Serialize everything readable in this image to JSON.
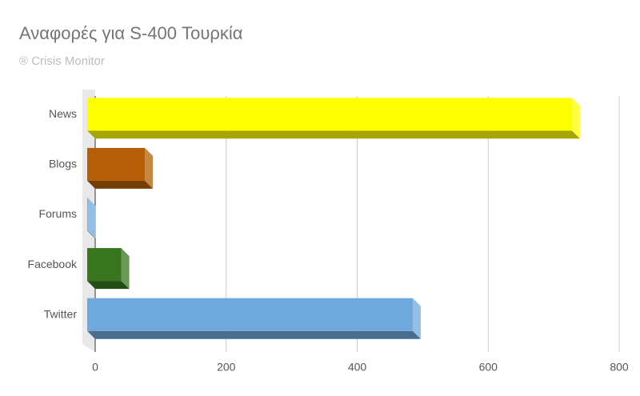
{
  "chart_data": {
    "type": "bar",
    "orientation": "horizontal",
    "title": "Αναφορές για S-400 Τουρκία",
    "subtitle": "® Crisis Monitor",
    "categories": [
      "News",
      "Blogs",
      "Forums",
      "Facebook",
      "Twitter"
    ],
    "values": [
      740,
      88,
      1,
      52,
      497
    ],
    "colors": [
      "#ffff00",
      "#b45f06",
      "#6fa8dc",
      "#38761d",
      "#6fa8dc"
    ],
    "xlim": [
      0,
      800
    ],
    "xticks": [
      0,
      200,
      400,
      600,
      800
    ],
    "grid": true
  }
}
